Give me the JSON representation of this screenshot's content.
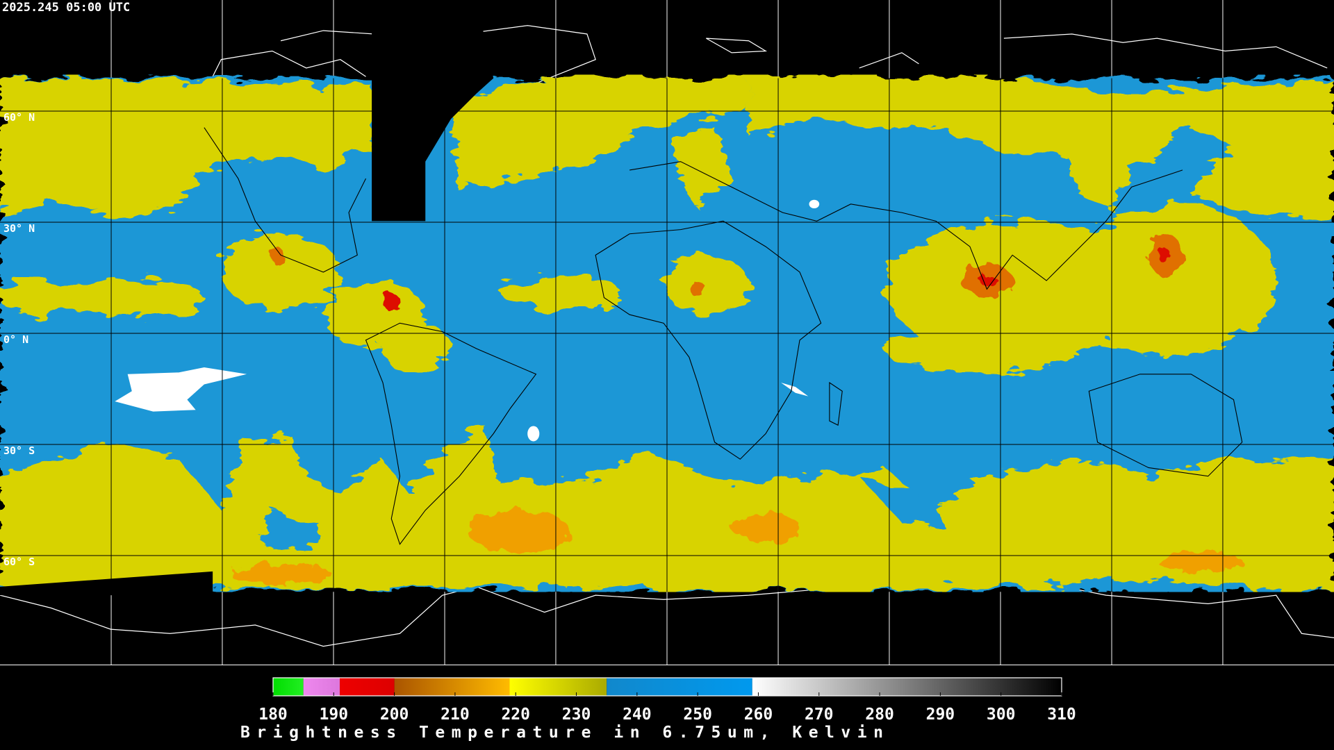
{
  "header": {
    "timestamp": "2025.245 05:00 UTC"
  },
  "map": {
    "lat_labels": [
      "60° N",
      "30° N",
      "0° N",
      "30° S",
      "60° S"
    ]
  },
  "colorbar": {
    "title": "Brightness Temperature in 6.75um, Kelvin",
    "range": [
      180,
      310
    ],
    "ticks": [
      180,
      190,
      200,
      210,
      220,
      230,
      240,
      250,
      260,
      270,
      280,
      290,
      300,
      310
    ],
    "segments": [
      {
        "from": 180,
        "to": 185,
        "color": "#00dd00",
        "color_end": "#22ee22"
      },
      {
        "from": 185,
        "to": 191,
        "color": "#ee88ee",
        "color_end": "#dd77dd"
      },
      {
        "from": 191,
        "to": 200,
        "color": "#ee0000",
        "color_end": "#dd0000"
      },
      {
        "from": 200,
        "to": 219,
        "color": "#aa5500",
        "color_end": "#ffbb00"
      },
      {
        "from": 219,
        "to": 235,
        "color": "#ffff00",
        "color_end": "#aaaa00"
      },
      {
        "from": 235,
        "to": 259,
        "color": "#1188cc",
        "color_end": "#0099ee"
      },
      {
        "from": 259,
        "to": 310,
        "color": "#ffffff",
        "color_end": "#000000"
      }
    ]
  }
}
